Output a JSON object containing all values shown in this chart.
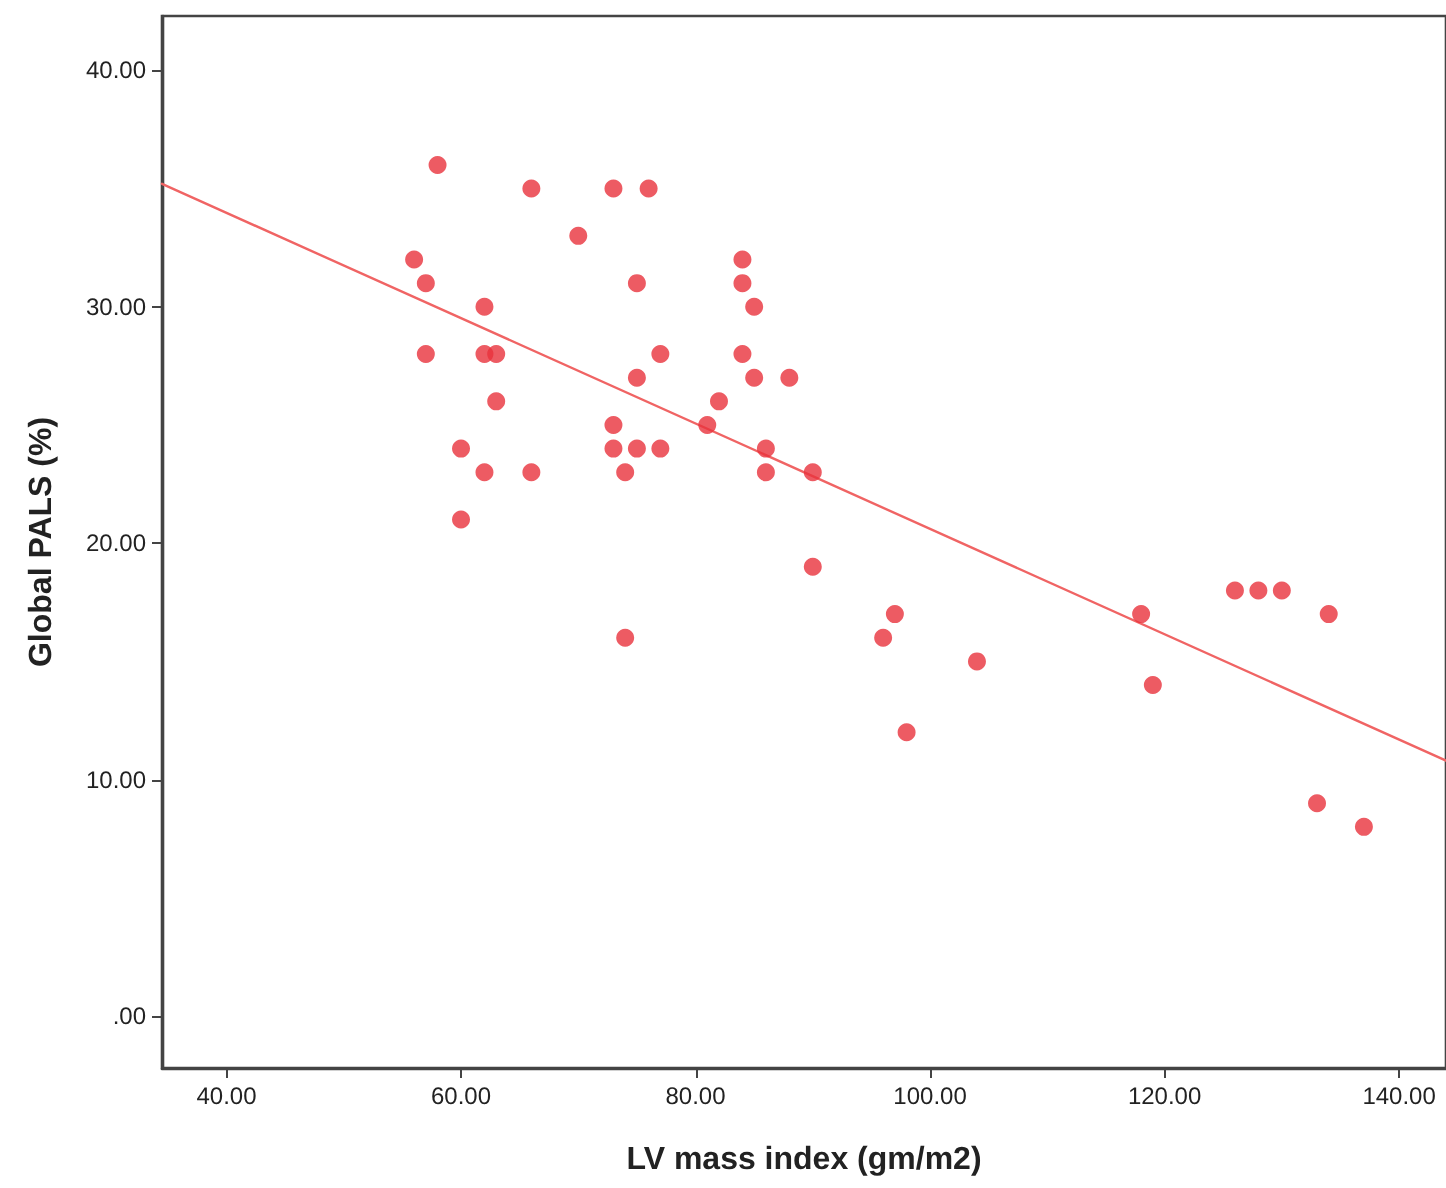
{
  "chart_data": {
    "type": "scatter",
    "xlabel": "LV mass index (gm/m2)",
    "ylabel": "Global PALS (%)",
    "xlim": [
      34.5,
      144
    ],
    "ylim": [
      -2.2,
      42.3
    ],
    "xticks": [
      {
        "value": 40,
        "label": "40.00"
      },
      {
        "value": 60,
        "label": "60.00"
      },
      {
        "value": 80,
        "label": "80.00"
      },
      {
        "value": 100,
        "label": "100.00"
      },
      {
        "value": 120,
        "label": "120.00"
      },
      {
        "value": 140,
        "label": "140.00"
      }
    ],
    "yticks": [
      {
        "value": 0,
        "label": ".00"
      },
      {
        "value": 10,
        "label": "10.00"
      },
      {
        "value": 20,
        "label": "20.00"
      },
      {
        "value": 30,
        "label": "30.00"
      },
      {
        "value": 40,
        "label": "40.00"
      }
    ],
    "grid": false,
    "marker": "circle",
    "series": [
      {
        "color": "#e8323c",
        "x": [
          56,
          57,
          57,
          58,
          60,
          60,
          62,
          62,
          63,
          63,
          62,
          66,
          66,
          70,
          73,
          73,
          73,
          74,
          74,
          76,
          75,
          75,
          75,
          77,
          77,
          84,
          84,
          85,
          84,
          85,
          88,
          82,
          81,
          86,
          86,
          90,
          90,
          97,
          96,
          104,
          98,
          118,
          119,
          126,
          128,
          130,
          134,
          133,
          137
        ],
        "values": [
          32,
          31,
          28,
          36,
          24,
          21,
          30,
          28,
          28,
          26,
          23,
          35,
          23,
          33,
          35,
          25,
          24,
          23,
          16,
          35,
          31,
          27,
          24,
          28,
          24,
          32,
          31,
          30,
          28,
          27,
          27,
          26,
          25,
          24,
          23,
          23,
          19,
          17,
          16,
          15,
          12,
          17,
          14,
          18,
          18,
          18,
          17,
          9,
          8
        ]
      },
      {
        "type": "line",
        "color": "#f06464",
        "x": [
          34.5,
          144
        ],
        "values": [
          35.2,
          10.8
        ],
        "marker": "none",
        "line_style": "solid"
      }
    ]
  }
}
